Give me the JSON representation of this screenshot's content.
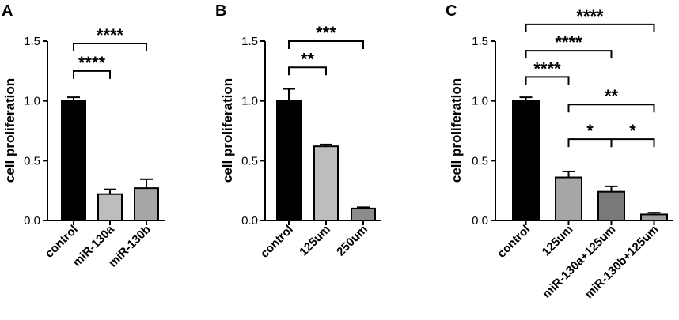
{
  "figure": {
    "panels": [
      {
        "letter": "A"
      },
      {
        "letter": "B"
      },
      {
        "letter": "C"
      }
    ]
  },
  "chart_data": [
    {
      "type": "bar",
      "panel": "A",
      "ylabel": "cell proliferation",
      "ylim": [
        0,
        1.5
      ],
      "yticks": [
        "0.0",
        "0.5",
        "1.0",
        "1.5"
      ],
      "categories": [
        "control",
        "miR-130a",
        "miR-130b"
      ],
      "values": [
        1.0,
        0.22,
        0.27
      ],
      "errors": [
        0.03,
        0.04,
        0.075
      ],
      "bar_colors": [
        "#000000",
        "#bdbdbd",
        "#a6a6a6"
      ],
      "significance": [
        {
          "from": 0,
          "to": 1,
          "label": "****",
          "level": 1.25
        },
        {
          "from": 0,
          "to": 2,
          "label": "****",
          "level": 1.48
        }
      ]
    },
    {
      "type": "bar",
      "panel": "B",
      "ylabel": "cell proliferation",
      "ylim": [
        0,
        1.5
      ],
      "yticks": [
        "0.0",
        "0.5",
        "1.0",
        "1.5"
      ],
      "categories": [
        "control",
        "125um",
        "250um"
      ],
      "values": [
        1.0,
        0.62,
        0.1
      ],
      "errors": [
        0.1,
        0.015,
        0.01
      ],
      "bar_colors": [
        "#000000",
        "#bdbdbd",
        "#8c8c8c"
      ],
      "significance": [
        {
          "from": 0,
          "to": 1,
          "label": "**",
          "level": 1.28
        },
        {
          "from": 0,
          "to": 2,
          "label": "***",
          "level": 1.5
        }
      ]
    },
    {
      "type": "bar",
      "panel": "C",
      "ylabel": "cell proliferation",
      "ylim": [
        0,
        1.5
      ],
      "yticks": [
        "0.0",
        "0.5",
        "1.0",
        "1.5"
      ],
      "categories": [
        "control",
        "125um",
        "miR-130a+125um",
        "miR-130b+125um"
      ],
      "values": [
        1.0,
        0.36,
        0.24,
        0.05
      ],
      "errors": [
        0.03,
        0.05,
        0.045,
        0.015
      ],
      "bar_colors": [
        "#000000",
        "#a6a6a6",
        "#7a7a7a",
        "#9e9e9e"
      ],
      "significance": [
        {
          "from": 0,
          "to": 1,
          "label": "****",
          "level": 1.2
        },
        {
          "from": 0,
          "to": 2,
          "label": "****",
          "level": 1.42
        },
        {
          "from": 0,
          "to": 3,
          "label": "****",
          "level": 1.64
        },
        {
          "from": 1,
          "to": 3,
          "label": "**",
          "level": 0.97
        },
        {
          "from": 1,
          "to": 2,
          "label": "*",
          "level": 0.68
        },
        {
          "from": 2,
          "to": 3,
          "label": "*",
          "level": 0.68
        }
      ]
    }
  ]
}
